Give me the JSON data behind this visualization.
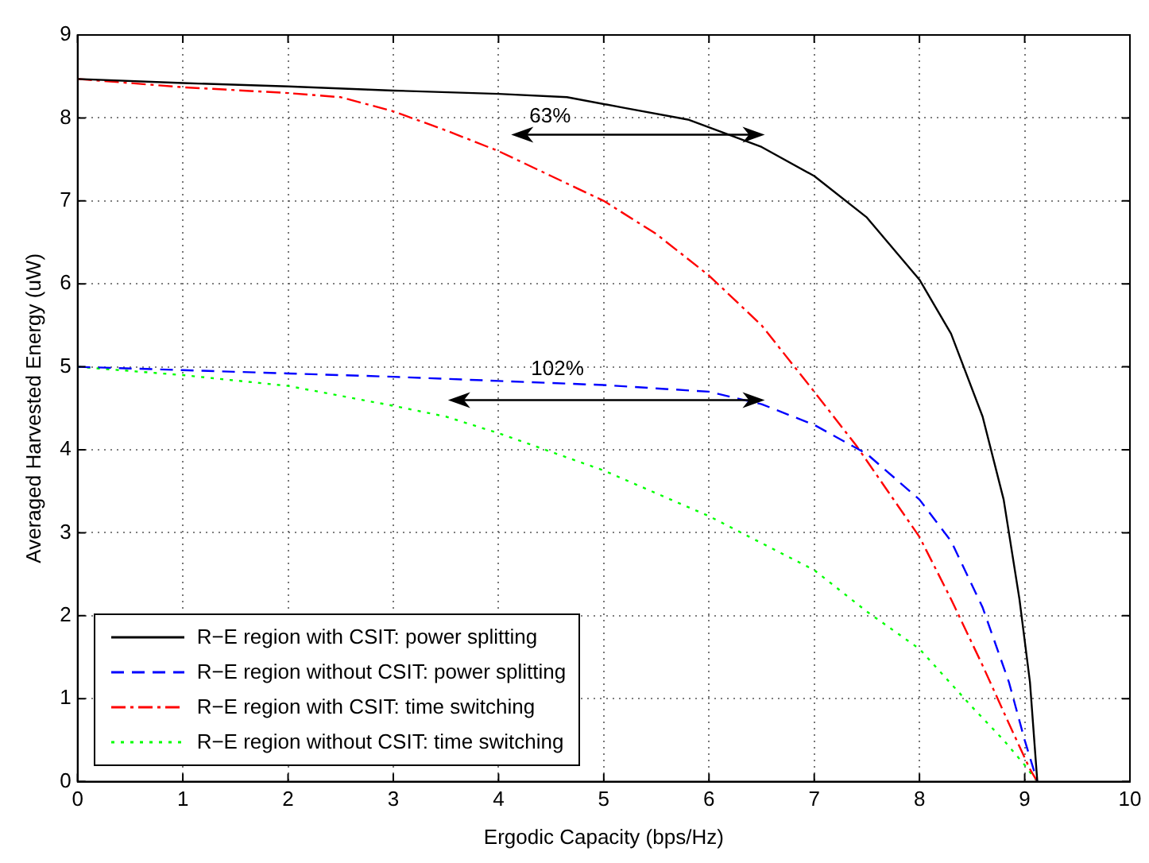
{
  "chart_data": {
    "type": "line",
    "xlabel": "Ergodic Capacity (bps/Hz)",
    "ylabel": "Averaged Harvested Energy (uW)",
    "xlim": [
      0,
      10
    ],
    "ylim": [
      0,
      9
    ],
    "xticks": [
      0,
      1,
      2,
      3,
      4,
      5,
      6,
      7,
      8,
      9,
      10
    ],
    "yticks": [
      0,
      1,
      2,
      3,
      4,
      5,
      6,
      7,
      8,
      9
    ],
    "grid": true,
    "legend": "bottom left",
    "marker": "none",
    "annotations": [
      "63%",
      "102%"
    ],
    "series": [
      {
        "name": "R−E region with CSIT: power splitting",
        "color": "#000000",
        "line_style": "solid",
        "x": [
          0,
          1,
          2,
          3,
          4,
          4.65,
          5.2,
          5.8,
          6.5,
          7,
          7.5,
          8,
          8.3,
          8.6,
          8.8,
          8.95,
          9.05,
          9.12
        ],
        "values": [
          8.47,
          8.42,
          8.38,
          8.33,
          8.29,
          8.25,
          8.12,
          7.98,
          7.65,
          7.3,
          6.8,
          6.05,
          5.4,
          4.4,
          3.4,
          2.2,
          1.2,
          0
        ]
      },
      {
        "name": "R−E region without CSIT: power splitting",
        "color": "#0000ff",
        "line_style": "dashed",
        "x": [
          0,
          1,
          2,
          3,
          4,
          5,
          6,
          6.5,
          7,
          7.5,
          8,
          8.3,
          8.6,
          8.85,
          9,
          9.12
        ],
        "values": [
          5.0,
          4.96,
          4.92,
          4.88,
          4.83,
          4.78,
          4.7,
          4.55,
          4.3,
          3.95,
          3.4,
          2.9,
          2.1,
          1.2,
          0.5,
          0
        ]
      },
      {
        "name": "R−E region with CSIT: time switching",
        "color": "#ff0000",
        "line_style": "dashdot",
        "x": [
          0,
          1,
          2,
          2.5,
          3,
          3.5,
          4,
          4.5,
          5,
          5.5,
          6,
          6.5,
          7,
          7.4,
          7.7,
          8,
          8.3,
          8.6,
          8.85,
          9.05,
          9.12
        ],
        "values": [
          8.47,
          8.37,
          8.3,
          8.25,
          8.08,
          7.85,
          7.6,
          7.3,
          7.0,
          6.6,
          6.1,
          5.5,
          4.7,
          4.05,
          3.5,
          2.95,
          2.2,
          1.4,
          0.7,
          0.15,
          0
        ]
      },
      {
        "name": "R−E region without CSIT: time switching",
        "color": "#00ff00",
        "line_style": "dotted",
        "x": [
          0,
          1,
          2,
          3,
          3.5,
          4,
          5,
          6,
          7,
          7.5,
          8,
          8.5,
          8.8,
          9.0,
          9.12
        ],
        "values": [
          5.0,
          4.9,
          4.77,
          4.53,
          4.4,
          4.2,
          3.75,
          3.2,
          2.55,
          2.05,
          1.6,
          0.9,
          0.5,
          0.2,
          0
        ]
      }
    ]
  }
}
